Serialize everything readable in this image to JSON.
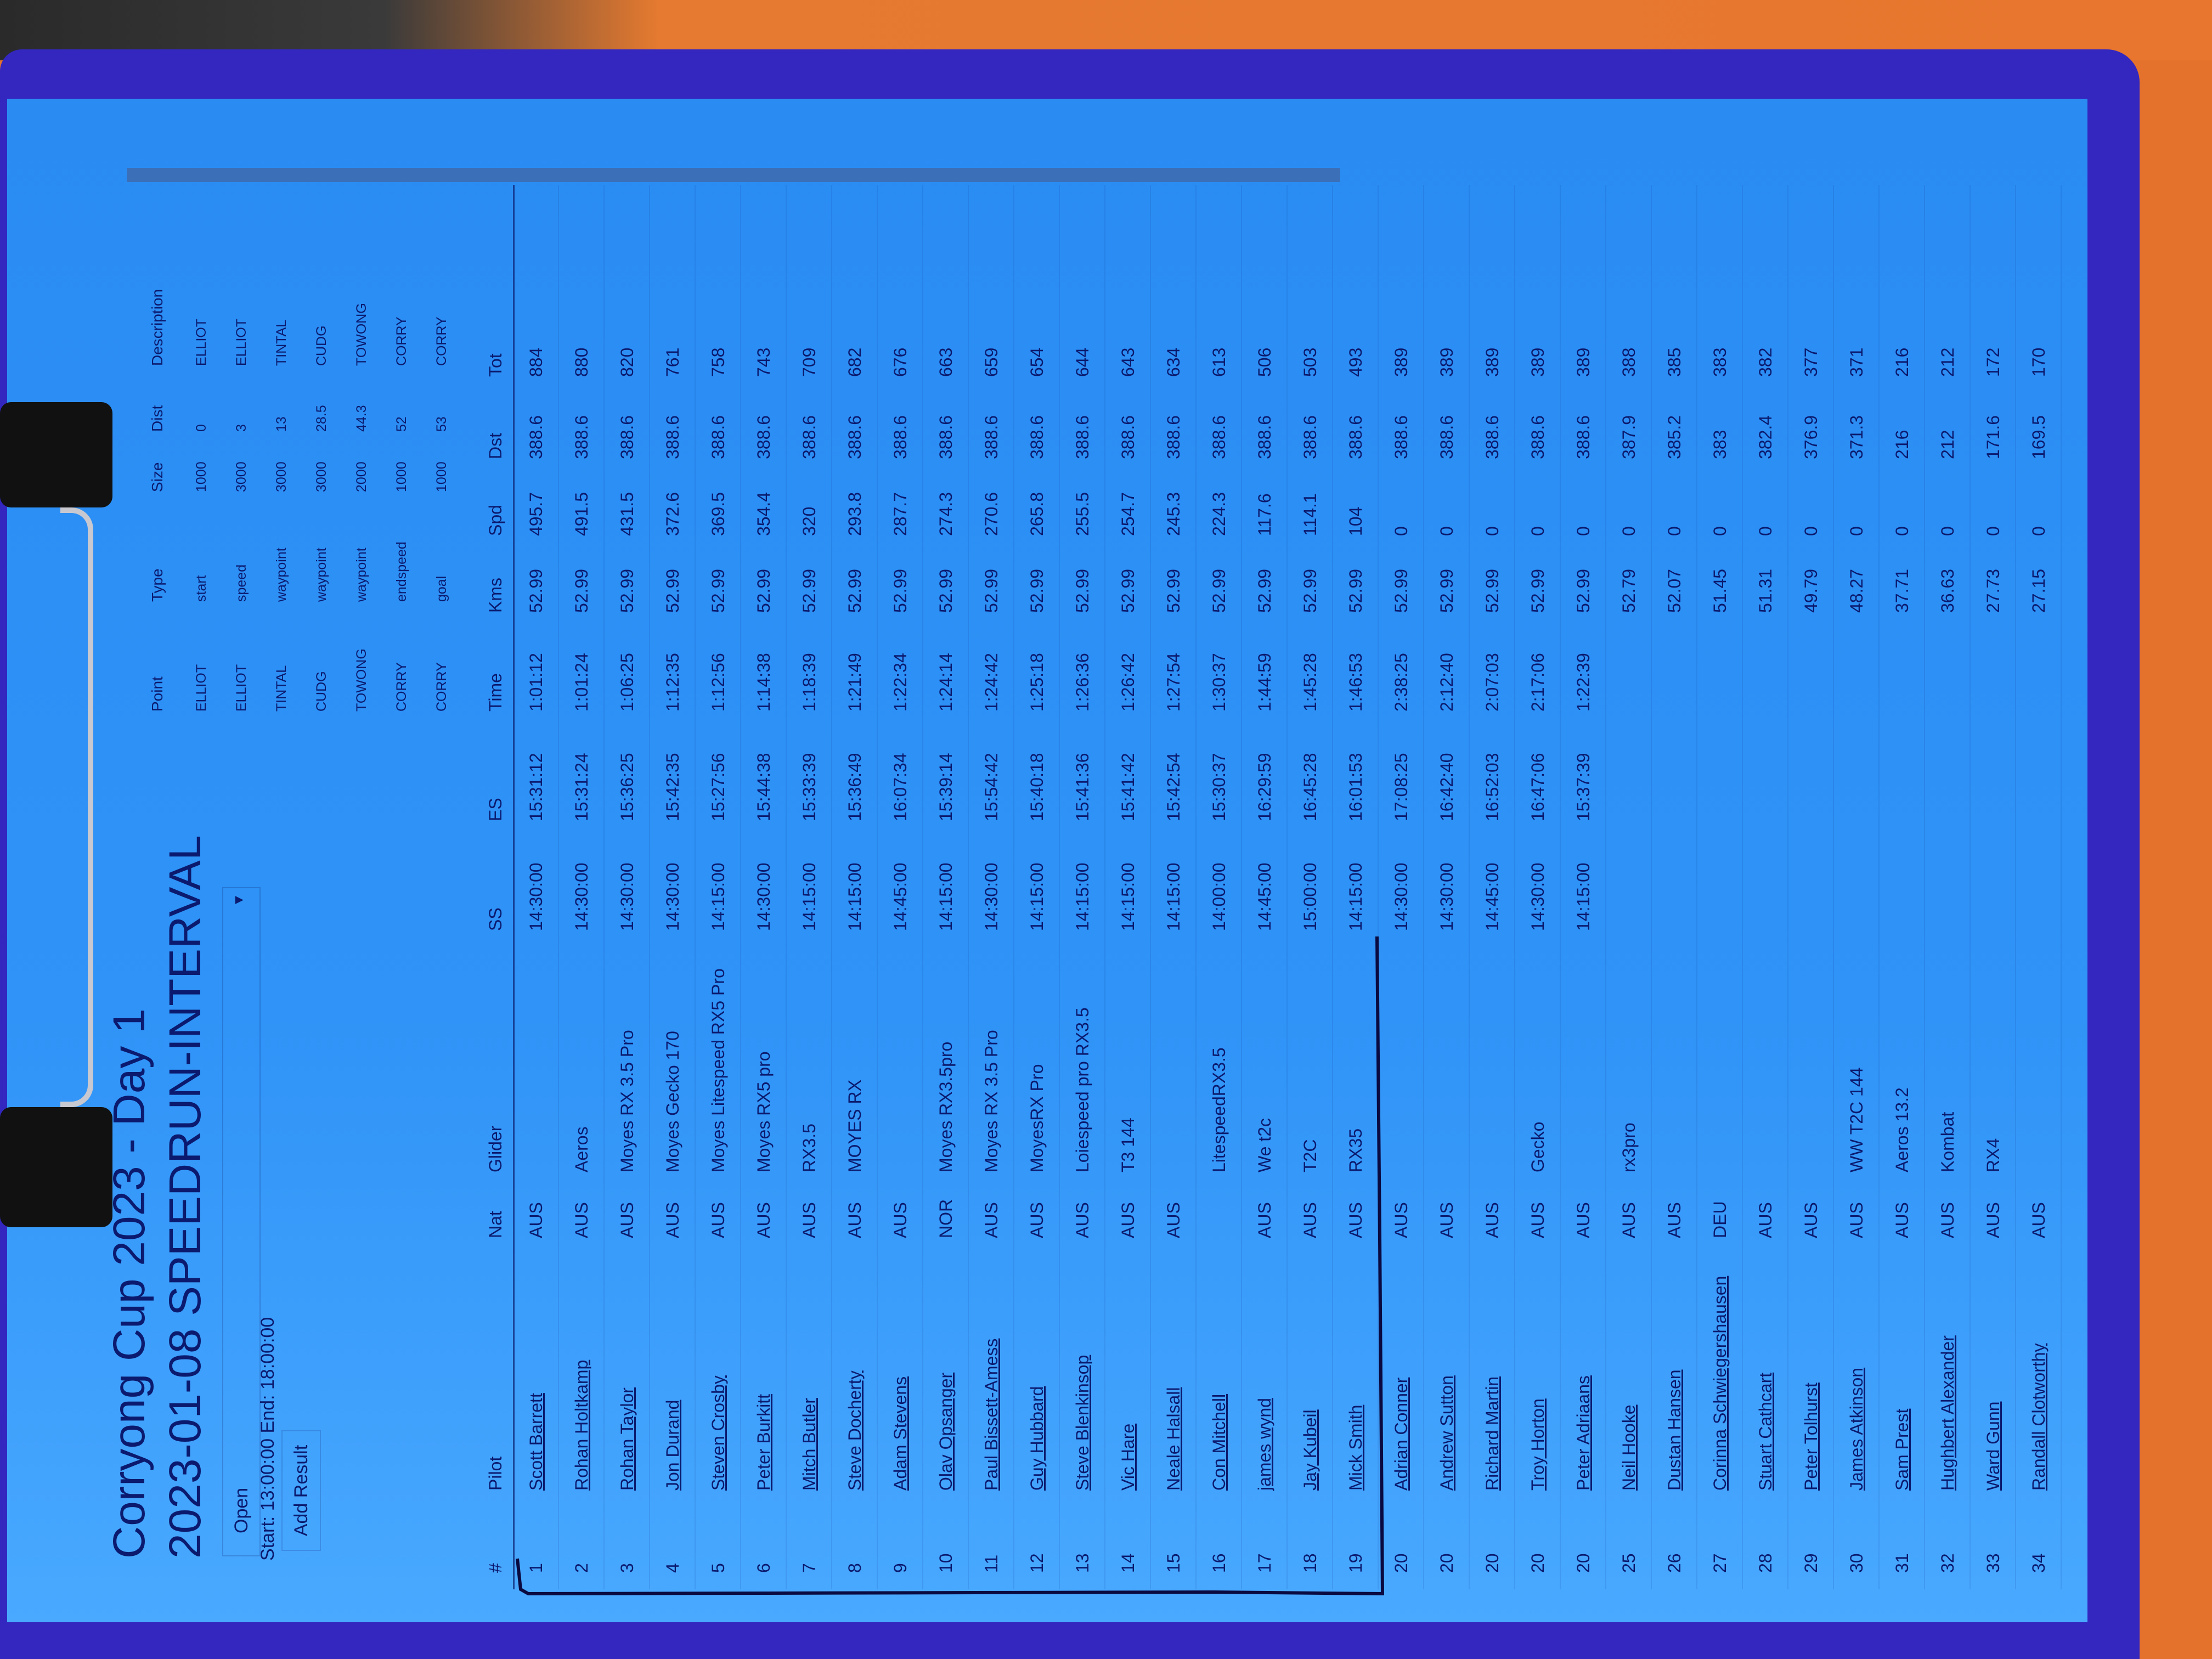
{
  "header": {
    "title": "Corryong Cup 2023 - Day 1",
    "subtitle": "2023-01-08 SPEEDRUN-INTERVAL",
    "status_select": "Open",
    "times": "Start: 13:00:00 End: 18:00:00",
    "add_result_label": "Add Result"
  },
  "task": {
    "columns": [
      "Point",
      "Type",
      "Size",
      "Dist",
      "Description"
    ],
    "rows": [
      [
        "ELLIOT",
        "start",
        "1000",
        "0",
        "ELLIOT"
      ],
      [
        "ELLIOT",
        "speed",
        "3000",
        "3",
        "ELLIOT"
      ],
      [
        "TINTAL",
        "waypoint",
        "3000",
        "13",
        "TINTAL"
      ],
      [
        "CUDG",
        "waypoint",
        "3000",
        "28.5",
        "CUDG"
      ],
      [
        "TOWONG",
        "waypoint",
        "2000",
        "44.3",
        "TOWONG"
      ],
      [
        "CORRY",
        "endspeed",
        "1000",
        "52",
        "CORRY"
      ],
      [
        "CORRY",
        "goal",
        "1000",
        "53",
        "CORRY"
      ]
    ]
  },
  "results": {
    "columns": [
      "#",
      "Pilot",
      "Nat",
      "Glider",
      "SS",
      "ES",
      "Time",
      "Kms",
      "Spd",
      "Dst",
      "Tot"
    ],
    "rows": [
      [
        "1",
        "Scott Barrett",
        "AUS",
        "",
        "14:30:00",
        "15:31:12",
        "1:01:12",
        "52.99",
        "495.7",
        "388.6",
        "884"
      ],
      [
        "2",
        "Rohan Holtkamp",
        "AUS",
        "Aeros",
        "14:30:00",
        "15:31:24",
        "1:01:24",
        "52.99",
        "491.5",
        "388.6",
        "880"
      ],
      [
        "3",
        "Rohan Taylor",
        "AUS",
        "Moyes RX 3.5 Pro",
        "14:30:00",
        "15:36:25",
        "1:06:25",
        "52.99",
        "431.5",
        "388.6",
        "820"
      ],
      [
        "4",
        "Jon Durand",
        "AUS",
        "Moyes Gecko 170",
        "14:30:00",
        "15:42:35",
        "1:12:35",
        "52.99",
        "372.6",
        "388.6",
        "761"
      ],
      [
        "5",
        "Steven Crosby",
        "AUS",
        "Moyes Litespeed RX5 Pro",
        "14:15:00",
        "15:27:56",
        "1:12:56",
        "52.99",
        "369.5",
        "388.6",
        "758"
      ],
      [
        "6",
        "Peter Burkitt",
        "AUS",
        "Moyes RX5 pro",
        "14:30:00",
        "15:44:38",
        "1:14:38",
        "52.99",
        "354.4",
        "388.6",
        "743"
      ],
      [
        "7",
        "Mitch Butler",
        "AUS",
        "RX3.5",
        "14:15:00",
        "15:33:39",
        "1:18:39",
        "52.99",
        "320",
        "388.6",
        "709"
      ],
      [
        "8",
        "Steve Docherty",
        "AUS",
        "MOYES RX",
        "14:15:00",
        "15:36:49",
        "1:21:49",
        "52.99",
        "293.8",
        "388.6",
        "682"
      ],
      [
        "9",
        "Adam Stevens",
        "AUS",
        "",
        "14:45:00",
        "16:07:34",
        "1:22:34",
        "52.99",
        "287.7",
        "388.6",
        "676"
      ],
      [
        "10",
        "Olav Opsanger",
        "NOR",
        "Moyes RX3.5pro",
        "14:15:00",
        "15:39:14",
        "1:24:14",
        "52.99",
        "274.3",
        "388.6",
        "663"
      ],
      [
        "11",
        "Paul Bissett-Amess",
        "AUS",
        "Moyes RX 3.5 Pro",
        "14:30:00",
        "15:54:42",
        "1:24:42",
        "52.99",
        "270.6",
        "388.6",
        "659"
      ],
      [
        "12",
        "Guy Hubbard",
        "AUS",
        "MoyesRX Pro",
        "14:15:00",
        "15:40:18",
        "1:25:18",
        "52.99",
        "265.8",
        "388.6",
        "654"
      ],
      [
        "13",
        "Steve Blenkinsop",
        "AUS",
        "Loiespeed pro RX3.5",
        "14:15:00",
        "15:41:36",
        "1:26:36",
        "52.99",
        "255.5",
        "388.6",
        "644"
      ],
      [
        "14",
        "Vic Hare",
        "AUS",
        "T3 144",
        "14:15:00",
        "15:41:42",
        "1:26:42",
        "52.99",
        "254.7",
        "388.6",
        "643"
      ],
      [
        "15",
        "Neale Halsall",
        "AUS",
        "",
        "14:15:00",
        "15:42:54",
        "1:27:54",
        "52.99",
        "245.3",
        "388.6",
        "634"
      ],
      [
        "16",
        "Con Mitchell",
        "",
        "LitespeedRX3.5",
        "14:00:00",
        "15:30:37",
        "1:30:37",
        "52.99",
        "224.3",
        "388.6",
        "613"
      ],
      [
        "17",
        "james wynd",
        "AUS",
        "We t2c",
        "14:45:00",
        "16:29:59",
        "1:44:59",
        "52.99",
        "117.6",
        "388.6",
        "506"
      ],
      [
        "18",
        "Jay Kubeil",
        "AUS",
        "T2C",
        "15:00:00",
        "16:45:28",
        "1:45:28",
        "52.99",
        "114.1",
        "388.6",
        "503"
      ],
      [
        "19",
        "Mick Smith",
        "AUS",
        "RX35",
        "14:15:00",
        "16:01:53",
        "1:46:53",
        "52.99",
        "104",
        "388.6",
        "493"
      ],
      [
        "20",
        "Adrian Conner",
        "AUS",
        "",
        "14:30:00",
        "17:08:25",
        "2:38:25",
        "52.99",
        "0",
        "388.6",
        "389"
      ],
      [
        "20",
        "Andrew Sutton",
        "AUS",
        "",
        "14:30:00",
        "16:42:40",
        "2:12:40",
        "52.99",
        "0",
        "388.6",
        "389"
      ],
      [
        "20",
        "Richard Martin",
        "AUS",
        "",
        "14:45:00",
        "16:52:03",
        "2:07:03",
        "52.99",
        "0",
        "388.6",
        "389"
      ],
      [
        "20",
        "Troy Horton",
        "AUS",
        "Gecko",
        "14:30:00",
        "16:47:06",
        "2:17:06",
        "52.99",
        "0",
        "388.6",
        "389"
      ],
      [
        "20",
        "Peter Adriaans",
        "AUS",
        "",
        "14:15:00",
        "15:37:39",
        "1:22:39",
        "52.99",
        "0",
        "388.6",
        "389"
      ],
      [
        "25",
        "Neil Hooke",
        "AUS",
        "rx3pro",
        "",
        "",
        "",
        "52.79",
        "0",
        "387.9",
        "388"
      ],
      [
        "26",
        "Dustan Hansen",
        "AUS",
        "",
        "",
        "",
        "",
        "52.07",
        "0",
        "385.2",
        "385"
      ],
      [
        "27",
        "Corinna Schwiegershausen",
        "DEU",
        "",
        "",
        "",
        "",
        "51.45",
        "0",
        "383",
        "383"
      ],
      [
        "28",
        "Stuart Cathcart",
        "AUS",
        "",
        "",
        "",
        "",
        "51.31",
        "0",
        "382.4",
        "382"
      ],
      [
        "29",
        "Peter Tolhurst",
        "AUS",
        "",
        "",
        "",
        "",
        "49.79",
        "0",
        "376.9",
        "377"
      ],
      [
        "30",
        "James Atkinson",
        "AUS",
        "WW T2C 144",
        "",
        "",
        "",
        "48.27",
        "0",
        "371.3",
        "371"
      ],
      [
        "31",
        "Sam Prest",
        "AUS",
        "Aeros 13.2",
        "",
        "",
        "",
        "37.71",
        "0",
        "216",
        "216"
      ],
      [
        "32",
        "Hughbert Alexander",
        "AUS",
        "Kombat",
        "",
        "",
        "",
        "36.63",
        "0",
        "212",
        "212"
      ],
      [
        "33",
        "Ward Gunn",
        "AUS",
        "RX4",
        "",
        "",
        "",
        "27.73",
        "0",
        "171.6",
        "172"
      ],
      [
        "34",
        "Randall Clotworthy",
        "AUS",
        "",
        "",
        "",
        "",
        "27.15",
        "0",
        "169.5",
        "170"
      ]
    ]
  },
  "icons": {
    "select_arrow": "chevron-down-icon"
  },
  "colors": {
    "paper": "#2f93f7",
    "text": "#0b1a6e",
    "clipboard": "#3327c0",
    "background": "#e5722c"
  }
}
